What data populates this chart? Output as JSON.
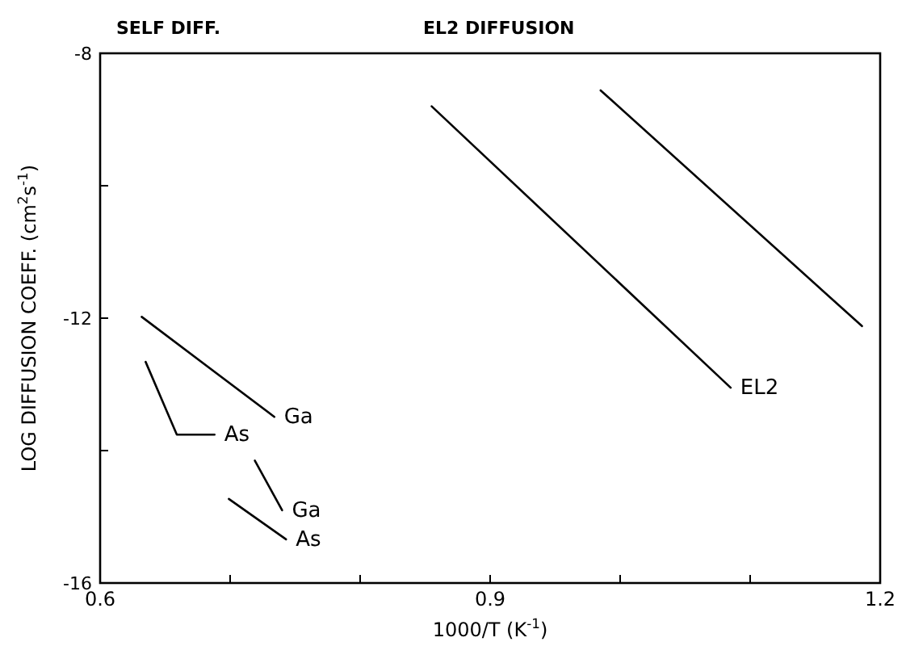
{
  "chart_data": {
    "type": "line",
    "xlabel": "1000/T (K$^{-1}$)",
    "ylabel": "LOG DIFFUSION COEFF. (cm$^{2}$s$^{-1}$)",
    "xlim": [
      0.6,
      1.2
    ],
    "ylim": [
      -16,
      -8
    ],
    "xticks": [
      0.6,
      {
        "value": 0.7,
        "label": null
      },
      {
        "value": 0.8,
        "label": null
      },
      0.9,
      {
        "value": 1.0,
        "label": null
      },
      {
        "value": 1.1,
        "label": null
      },
      1.2
    ],
    "yticks": [
      -16,
      {
        "value": -14,
        "label": null
      },
      -12,
      {
        "value": -10,
        "label": null
      },
      -8
    ],
    "grid": false,
    "legend": false,
    "marker": "none",
    "line_style": "solid",
    "series": [
      {
        "name": "EL2",
        "color": "#000000",
        "x": [
          0.855,
          1.085
        ],
        "values": [
          -8.8,
          -13.05
        ]
      },
      {
        "color": "#000000",
        "x": [
          0.985,
          1.186
        ],
        "values": [
          -8.56,
          -12.12
        ]
      },
      {
        "name": "Ga",
        "color": "#000000",
        "x": [
          0.632,
          0.734
        ],
        "values": [
          -11.98,
          -13.49
        ]
      },
      {
        "name": "As",
        "color": "#000000",
        "x": [
          0.635,
          0.659,
          0.688
        ],
        "values": [
          -12.66,
          -13.76,
          -13.76
        ]
      },
      {
        "name": "Ga",
        "color": "#000000",
        "x": [
          0.719,
          0.74
        ],
        "values": [
          -14.15,
          -14.9
        ]
      },
      {
        "name": "As",
        "color": "#000000",
        "x": [
          0.699,
          0.743
        ],
        "values": [
          -14.73,
          -15.34
        ]
      }
    ],
    "annotations": [
      "SELF DIFF.",
      "EL2 DIFFUSION"
    ]
  }
}
